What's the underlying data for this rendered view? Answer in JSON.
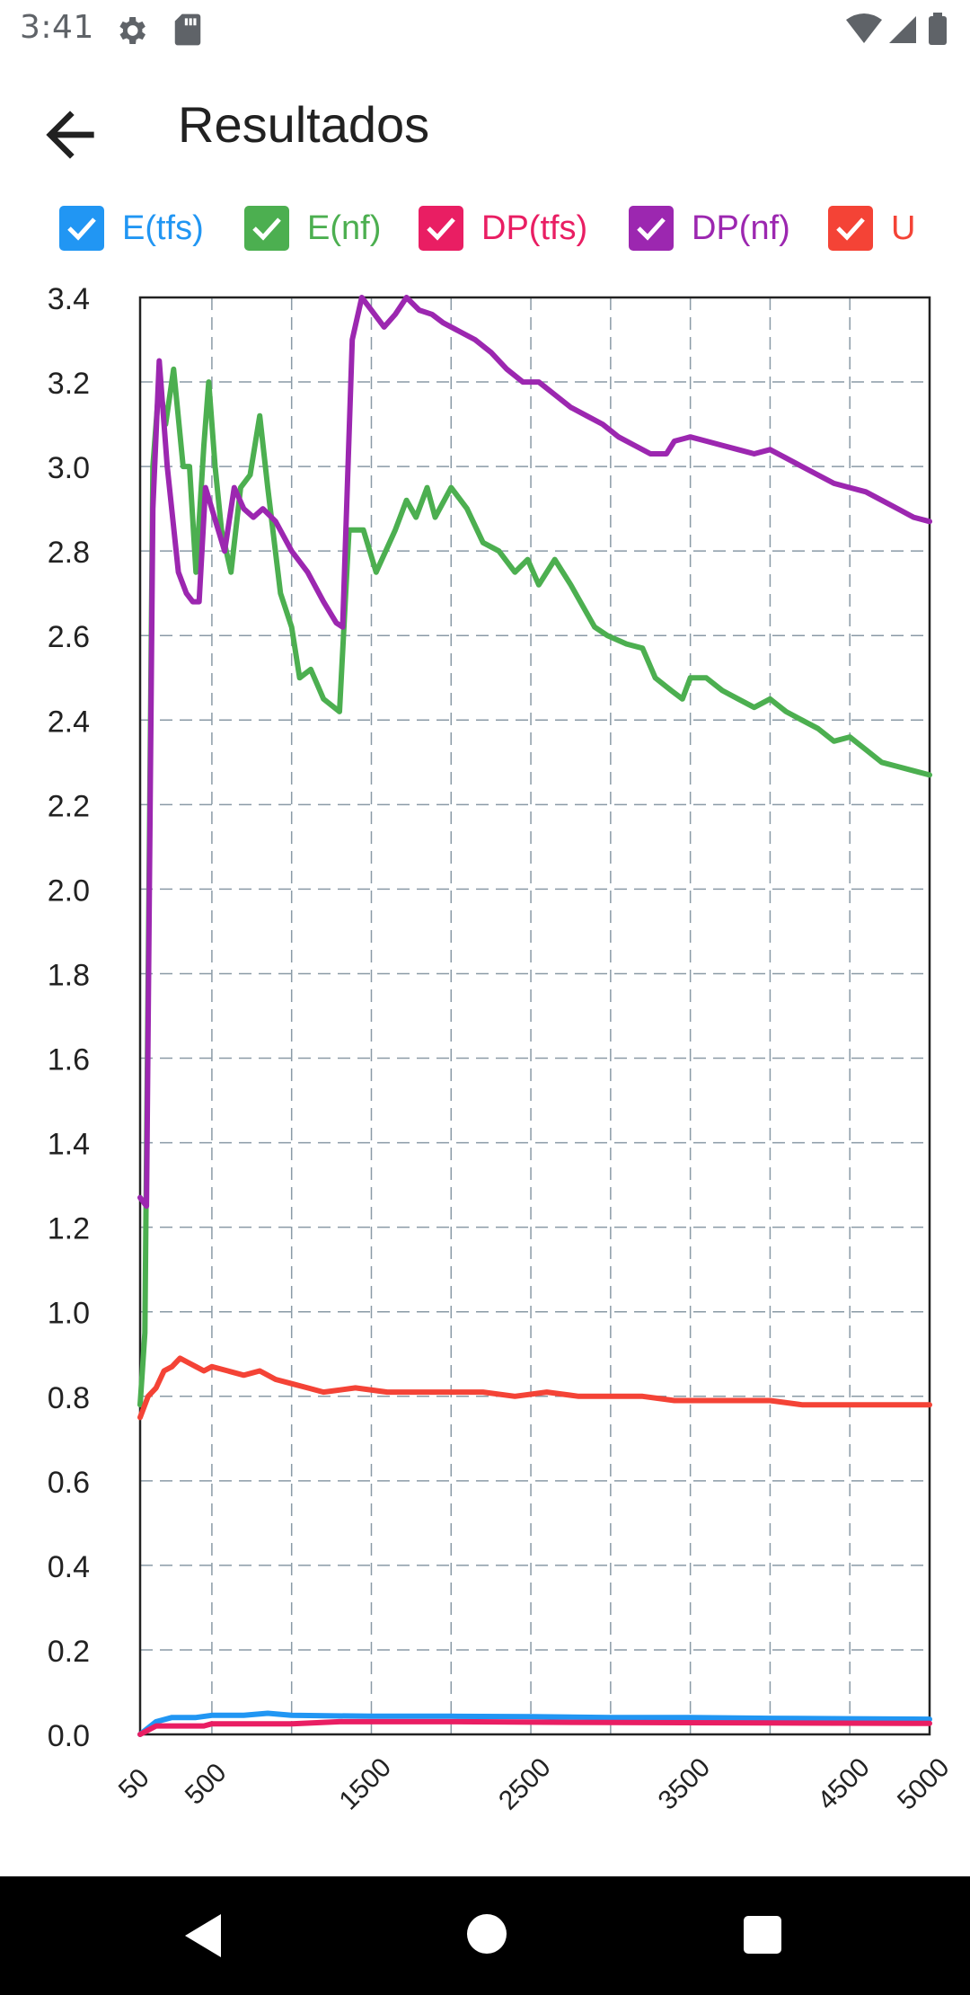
{
  "status_bar": {
    "time": "3:41",
    "icons": [
      "gear-icon",
      "sd-card-icon",
      "wifi-icon",
      "signal-icon",
      "battery-icon"
    ]
  },
  "app_bar": {
    "title": "Resultados",
    "back_icon": "arrow-back-icon"
  },
  "legend": [
    {
      "label": "E(tfs)",
      "color": "#2196F3",
      "checked": true
    },
    {
      "label": "E(nf)",
      "color": "#4CAF50",
      "checked": true
    },
    {
      "label": "DP(tfs)",
      "color": "#E91E63",
      "checked": true
    },
    {
      "label": "DP(nf)",
      "color": "#9C27B0",
      "checked": true
    },
    {
      "label": "U",
      "color": "#F44336",
      "checked": true
    }
  ],
  "chart_data": {
    "type": "line",
    "title": "",
    "xlabel": "",
    "ylabel": "",
    "xlim": [
      50,
      5000
    ],
    "ylim": [
      0,
      3.4
    ],
    "x_ticks": [
      50,
      500,
      1500,
      2500,
      3500,
      4500,
      5000
    ],
    "y_ticks": [
      0.0,
      0.2,
      0.4,
      0.6,
      0.8,
      1.0,
      1.2,
      1.4,
      1.6,
      1.8,
      2.0,
      2.2,
      2.4,
      2.6,
      2.8,
      3.0,
      3.2,
      3.4
    ],
    "grid": true,
    "legend_position": "top",
    "series": [
      {
        "name": "E(tfs)",
        "color": "#2196F3",
        "points": [
          [
            50,
            0.0
          ],
          [
            150,
            0.03
          ],
          [
            250,
            0.04
          ],
          [
            400,
            0.04
          ],
          [
            500,
            0.045
          ],
          [
            700,
            0.045
          ],
          [
            850,
            0.05
          ],
          [
            1000,
            0.045
          ],
          [
            1500,
            0.043
          ],
          [
            2000,
            0.043
          ],
          [
            2500,
            0.042
          ],
          [
            3000,
            0.04
          ],
          [
            3500,
            0.04
          ],
          [
            4000,
            0.038
          ],
          [
            4500,
            0.037
          ],
          [
            5000,
            0.036
          ]
        ]
      },
      {
        "name": "E(nf)",
        "color": "#4CAF50",
        "points": [
          [
            50,
            0.78
          ],
          [
            80,
            0.95
          ],
          [
            130,
            3.0
          ],
          [
            170,
            3.2
          ],
          [
            210,
            3.1
          ],
          [
            260,
            3.23
          ],
          [
            320,
            3.0
          ],
          [
            360,
            3.0
          ],
          [
            400,
            2.75
          ],
          [
            450,
            3.05
          ],
          [
            480,
            3.2
          ],
          [
            520,
            3.0
          ],
          [
            560,
            2.85
          ],
          [
            620,
            2.75
          ],
          [
            680,
            2.95
          ],
          [
            740,
            2.98
          ],
          [
            800,
            3.12
          ],
          [
            850,
            2.95
          ],
          [
            930,
            2.7
          ],
          [
            1000,
            2.62
          ],
          [
            1050,
            2.5
          ],
          [
            1120,
            2.52
          ],
          [
            1200,
            2.45
          ],
          [
            1300,
            2.42
          ],
          [
            1360,
            2.85
          ],
          [
            1450,
            2.85
          ],
          [
            1530,
            2.75
          ],
          [
            1650,
            2.85
          ],
          [
            1720,
            2.92
          ],
          [
            1780,
            2.88
          ],
          [
            1850,
            2.95
          ],
          [
            1900,
            2.88
          ],
          [
            2000,
            2.95
          ],
          [
            2100,
            2.9
          ],
          [
            2200,
            2.82
          ],
          [
            2300,
            2.8
          ],
          [
            2400,
            2.75
          ],
          [
            2480,
            2.78
          ],
          [
            2550,
            2.72
          ],
          [
            2650,
            2.78
          ],
          [
            2750,
            2.72
          ],
          [
            2900,
            2.62
          ],
          [
            2980,
            2.6
          ],
          [
            3100,
            2.58
          ],
          [
            3200,
            2.57
          ],
          [
            3280,
            2.5
          ],
          [
            3380,
            2.47
          ],
          [
            3450,
            2.45
          ],
          [
            3500,
            2.5
          ],
          [
            3600,
            2.5
          ],
          [
            3700,
            2.47
          ],
          [
            3800,
            2.45
          ],
          [
            3900,
            2.43
          ],
          [
            4000,
            2.45
          ],
          [
            4100,
            2.42
          ],
          [
            4200,
            2.4
          ],
          [
            4300,
            2.38
          ],
          [
            4400,
            2.35
          ],
          [
            4500,
            2.36
          ],
          [
            4600,
            2.33
          ],
          [
            4700,
            2.3
          ],
          [
            4800,
            2.29
          ],
          [
            4900,
            2.28
          ],
          [
            5000,
            2.27
          ]
        ]
      },
      {
        "name": "DP(tfs)",
        "color": "#E91E63",
        "points": [
          [
            50,
            0.0
          ],
          [
            150,
            0.02
          ],
          [
            300,
            0.02
          ],
          [
            450,
            0.02
          ],
          [
            500,
            0.025
          ],
          [
            1000,
            0.025
          ],
          [
            1300,
            0.03
          ],
          [
            2000,
            0.03
          ],
          [
            3000,
            0.028
          ],
          [
            4000,
            0.027
          ],
          [
            5000,
            0.026
          ]
        ]
      },
      {
        "name": "DP(nf)",
        "color": "#9C27B0",
        "points": [
          [
            50,
            1.27
          ],
          [
            90,
            1.25
          ],
          [
            130,
            2.9
          ],
          [
            170,
            3.25
          ],
          [
            220,
            3.0
          ],
          [
            290,
            2.75
          ],
          [
            340,
            2.7
          ],
          [
            380,
            2.68
          ],
          [
            420,
            2.68
          ],
          [
            460,
            2.95
          ],
          [
            500,
            2.9
          ],
          [
            540,
            2.85
          ],
          [
            580,
            2.8
          ],
          [
            640,
            2.95
          ],
          [
            700,
            2.9
          ],
          [
            760,
            2.88
          ],
          [
            820,
            2.9
          ],
          [
            900,
            2.87
          ],
          [
            1000,
            2.8
          ],
          [
            1100,
            2.75
          ],
          [
            1200,
            2.68
          ],
          [
            1280,
            2.63
          ],
          [
            1320,
            2.62
          ],
          [
            1380,
            3.3
          ],
          [
            1440,
            3.4
          ],
          [
            1500,
            3.37
          ],
          [
            1580,
            3.33
          ],
          [
            1650,
            3.36
          ],
          [
            1720,
            3.4
          ],
          [
            1800,
            3.37
          ],
          [
            1880,
            3.36
          ],
          [
            1950,
            3.34
          ],
          [
            2050,
            3.32
          ],
          [
            2150,
            3.3
          ],
          [
            2250,
            3.27
          ],
          [
            2350,
            3.23
          ],
          [
            2450,
            3.2
          ],
          [
            2550,
            3.2
          ],
          [
            2650,
            3.17
          ],
          [
            2750,
            3.14
          ],
          [
            2850,
            3.12
          ],
          [
            2950,
            3.1
          ],
          [
            3050,
            3.07
          ],
          [
            3150,
            3.05
          ],
          [
            3250,
            3.03
          ],
          [
            3350,
            3.03
          ],
          [
            3400,
            3.06
          ],
          [
            3500,
            3.07
          ],
          [
            3600,
            3.06
          ],
          [
            3700,
            3.05
          ],
          [
            3800,
            3.04
          ],
          [
            3900,
            3.03
          ],
          [
            4000,
            3.04
          ],
          [
            4100,
            3.02
          ],
          [
            4200,
            3.0
          ],
          [
            4300,
            2.98
          ],
          [
            4400,
            2.96
          ],
          [
            4500,
            2.95
          ],
          [
            4600,
            2.94
          ],
          [
            4700,
            2.92
          ],
          [
            4800,
            2.9
          ],
          [
            4900,
            2.88
          ],
          [
            5000,
            2.87
          ]
        ]
      },
      {
        "name": "U",
        "color": "#F44336",
        "points": [
          [
            50,
            0.75
          ],
          [
            100,
            0.8
          ],
          [
            150,
            0.82
          ],
          [
            200,
            0.86
          ],
          [
            250,
            0.87
          ],
          [
            300,
            0.89
          ],
          [
            350,
            0.88
          ],
          [
            400,
            0.87
          ],
          [
            450,
            0.86
          ],
          [
            500,
            0.87
          ],
          [
            600,
            0.86
          ],
          [
            700,
            0.85
          ],
          [
            800,
            0.86
          ],
          [
            900,
            0.84
          ],
          [
            1000,
            0.83
          ],
          [
            1100,
            0.82
          ],
          [
            1200,
            0.81
          ],
          [
            1400,
            0.82
          ],
          [
            1600,
            0.81
          ],
          [
            1800,
            0.81
          ],
          [
            2000,
            0.81
          ],
          [
            2200,
            0.81
          ],
          [
            2400,
            0.8
          ],
          [
            2600,
            0.81
          ],
          [
            2800,
            0.8
          ],
          [
            3000,
            0.8
          ],
          [
            3200,
            0.8
          ],
          [
            3400,
            0.79
          ],
          [
            3600,
            0.79
          ],
          [
            3800,
            0.79
          ],
          [
            4000,
            0.79
          ],
          [
            4200,
            0.78
          ],
          [
            4400,
            0.78
          ],
          [
            4600,
            0.78
          ],
          [
            4800,
            0.78
          ],
          [
            5000,
            0.78
          ]
        ]
      }
    ]
  }
}
